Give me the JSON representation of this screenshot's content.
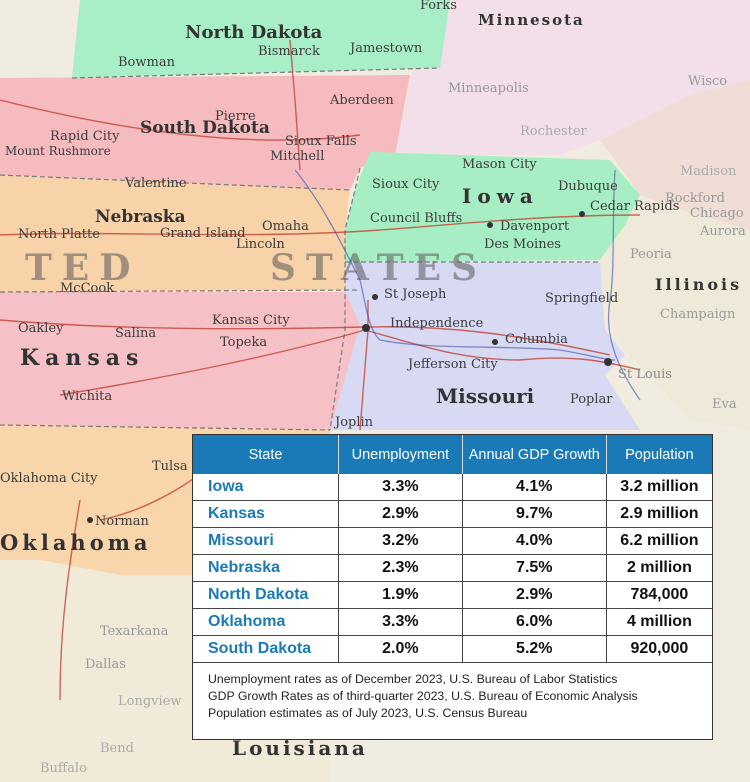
{
  "map": {
    "states": [
      "North Dakota",
      "South Dakota",
      "Nebraska",
      "Iowa",
      "Kansas",
      "Missouri",
      "Oklahoma",
      "Minnesota",
      "Illinois",
      "Louisiana"
    ],
    "country_text": [
      "TED",
      "STATES"
    ],
    "cities": [
      "Forks",
      "Bowman",
      "Bismarck",
      "Jamestown",
      "Minneapolis",
      "Aberdeen",
      "Rapid City",
      "Pierre",
      "Sioux Falls",
      "Mitchell",
      "Mount Rushmore",
      "Valentine",
      "Mason City",
      "Sioux City",
      "Dubuque",
      "Cedar Rapids",
      "Rockford",
      "Chicago",
      "Aurora",
      "North Platte",
      "Grand Island",
      "Omaha",
      "Lincoln",
      "Council Bluffs",
      "Davenport",
      "Des Moines",
      "Peoria",
      "McCook",
      "St Joseph",
      "Springfield",
      "Champaign",
      "Oakley",
      "Salina",
      "Kansas City",
      "Independence",
      "Topeka",
      "Columbia",
      "Jefferson City",
      "St Louis",
      "Wichita",
      "Joplin",
      "Poplar",
      "Tulsa",
      "Oklahoma City",
      "Norman",
      "Dallas",
      "Texarkana",
      "Longview",
      "Bend",
      "Buffalo",
      "Rochester",
      "Madison",
      "Wisco",
      "Eva"
    ]
  },
  "table": {
    "headers": [
      "State",
      "Unemployment",
      "Annual GDP Growth",
      "Population"
    ],
    "rows": [
      {
        "state": "Iowa",
        "unemployment": "3.3%",
        "gdp": "4.1%",
        "population": "3.2 million"
      },
      {
        "state": "Kansas",
        "unemployment": "2.9%",
        "gdp": "9.7%",
        "population": "2.9 million"
      },
      {
        "state": "Missouri",
        "unemployment": "3.2%",
        "gdp": "4.0%",
        "population": "6.2 million"
      },
      {
        "state": "Nebraska",
        "unemployment": "2.3%",
        "gdp": "7.5%",
        "population": "2 million"
      },
      {
        "state": "North Dakota",
        "unemployment": "1.9%",
        "gdp": "2.9%",
        "population": "784,000"
      },
      {
        "state": "Oklahoma",
        "unemployment": "3.3%",
        "gdp": "6.0%",
        "population": "4 million"
      },
      {
        "state": "South Dakota",
        "unemployment": "2.0%",
        "gdp": "5.2%",
        "population": "920,000"
      }
    ],
    "notes": [
      "Unemployment rates as of December 2023, U.S. Bureau of Labor Statistics",
      "GDP Growth Rates as of third-quarter 2023, U.S. Bureau of Economic Analysis",
      "Population estimates as of July 2023, U.S. Census Bureau"
    ]
  },
  "colors": {
    "header_bg": "#1a7ab8",
    "state_text": "#1a7ab8",
    "north_dakota": "#a6f0c8",
    "south_dakota": "#f5b6bb",
    "nebraska": "#f8d0a4",
    "iowa": "#a7eec3",
    "kansas": "#f6bec3",
    "missouri": "#d6d8f3",
    "oklahoma": "#f8d4a8",
    "minnesota": "#f3d8e8"
  }
}
